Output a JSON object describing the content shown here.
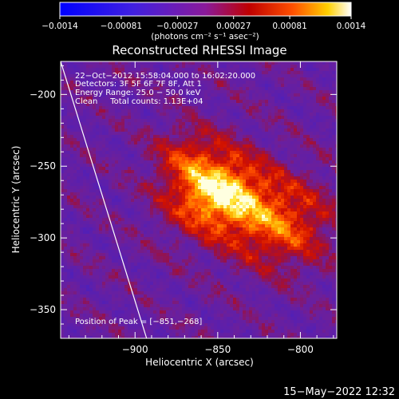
{
  "chart_data": {
    "type": "heatmap",
    "title": "Reconstructed RHESSI Image",
    "xlabel": "Heliocentric X (arcsec)",
    "ylabel": "Heliocentric Y (arcsec)",
    "xlim": [
      -945,
      -778
    ],
    "ylim": [
      -370,
      -177
    ],
    "x_ticks": [
      -900,
      -850,
      -800
    ],
    "x_tick_labels": [
      "−900",
      "−850",
      "−800"
    ],
    "y_ticks": [
      -200,
      -250,
      -300,
      -350
    ],
    "y_tick_labels": [
      "−200",
      "−250",
      "−300",
      "−350"
    ],
    "colorbar": {
      "min": -0.0014,
      "max": 0.0014,
      "ticks": [
        -0.0014,
        -0.00081,
        -0.00027,
        0.00027,
        0.00081,
        0.0014
      ],
      "tick_labels": [
        "−0.0014",
        "−0.00081",
        "−0.00027",
        "0.00027",
        "0.00081",
        "0.0014"
      ],
      "units": "(photons cm⁻² s⁻¹ asec⁻²)"
    },
    "annotations": [
      "22−Oct−2012 15:58:04.000 to 16:02:20.000",
      "Detectors: 3F 5F 6F 7F 8F, Att 1",
      "Energy Range: 25.0 − 50.0 keV",
      "Clean     Total counts: 1.13E+04"
    ],
    "peak_label": "Position of Peak = [−851,−268]",
    "peak": {
      "x": -851,
      "y": -268
    },
    "sources": [
      {
        "x": -851,
        "y": -268,
        "sigma": 20,
        "amplitude": 0.0014
      },
      {
        "x": -812,
        "y": -290,
        "sigma": 22,
        "amplitude": 0.00088
      },
      {
        "x": -870,
        "y": -240,
        "sigma": 14,
        "amplitude": 0.0004
      }
    ],
    "limb_line": [
      {
        "x": -945,
        "y": -177
      },
      {
        "x": -893,
        "y": -370
      }
    ]
  },
  "footer_timestamp": "15−May−2022 12:32",
  "colors": {
    "background": "#000000",
    "negative_scale": [
      "#0000ff",
      "#6d2fd0",
      "#8a1a9a"
    ],
    "positive_scale": [
      "#8a1a9a",
      "#c00000",
      "#ff5000",
      "#ffd000",
      "#ffffff"
    ]
  }
}
